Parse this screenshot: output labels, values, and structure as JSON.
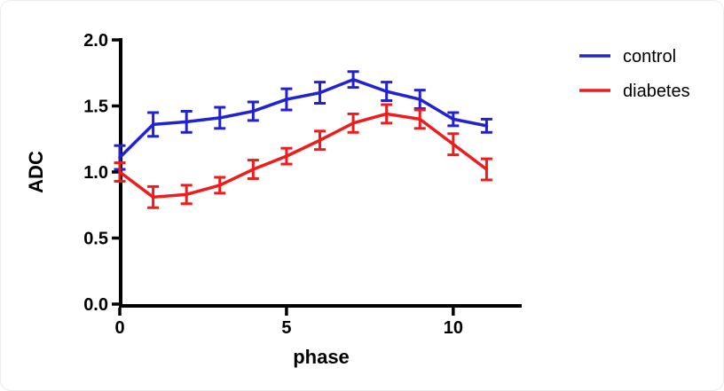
{
  "figure": {
    "background_color": "#ffffff",
    "border_color": "#ececec",
    "axis_color": "#000000"
  },
  "chart_data": {
    "type": "line",
    "title": "",
    "xlabel": "phase",
    "ylabel": "ADC",
    "xlim": [
      0,
      12
    ],
    "ylim": [
      0.0,
      2.0
    ],
    "x_ticks": [
      0,
      5,
      10
    ],
    "x_tick_labels": [
      "0",
      "5",
      "10"
    ],
    "y_ticks": [
      0.0,
      0.5,
      1.0,
      1.5,
      2.0
    ],
    "y_tick_labels": [
      "0.0",
      "0.5",
      "1.0",
      "1.5",
      "2.0"
    ],
    "grid": false,
    "legend_position": "right-outside-top",
    "error_bars": true,
    "x": [
      0,
      1,
      2,
      3,
      4,
      5,
      6,
      7,
      8,
      9,
      10,
      11
    ],
    "series": [
      {
        "name": "control",
        "color": "#2222d2",
        "values": [
          1.11,
          1.36,
          1.38,
          1.41,
          1.46,
          1.55,
          1.6,
          1.7,
          1.61,
          1.55,
          1.4,
          1.35
        ],
        "errors": [
          0.09,
          0.09,
          0.08,
          0.08,
          0.07,
          0.08,
          0.08,
          0.06,
          0.07,
          0.07,
          0.05,
          0.05
        ]
      },
      {
        "name": "diabetes",
        "color": "#ee1c1c",
        "values": [
          1.0,
          0.81,
          0.83,
          0.9,
          1.02,
          1.12,
          1.24,
          1.37,
          1.44,
          1.4,
          1.21,
          1.02
        ],
        "errors": [
          0.07,
          0.08,
          0.07,
          0.06,
          0.07,
          0.06,
          0.07,
          0.07,
          0.07,
          0.07,
          0.08,
          0.08
        ]
      }
    ]
  }
}
